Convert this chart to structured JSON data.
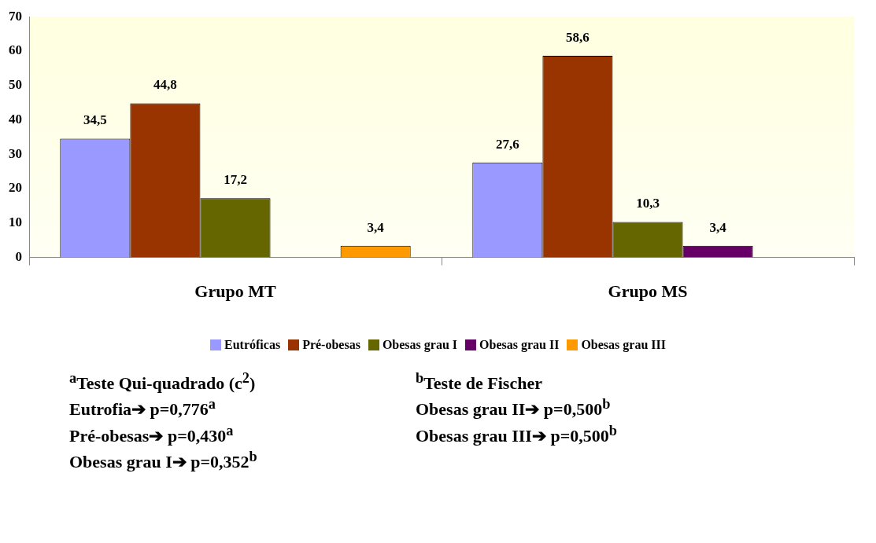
{
  "chart_data": {
    "type": "bar",
    "categories": [
      "Grupo MT",
      "Grupo MS"
    ],
    "series": [
      {
        "name": "Eutróficas",
        "color": "#9999ff",
        "values": [
          34.5,
          27.6
        ],
        "value_labels": [
          "34,5",
          "27,6"
        ]
      },
      {
        "name": "Pré-obesas",
        "color": "#993300",
        "values": [
          44.8,
          58.6
        ],
        "value_labels": [
          "44,8",
          "58,6"
        ]
      },
      {
        "name": "Obesas grau I",
        "color": "#666600",
        "values": [
          17.2,
          10.3
        ],
        "value_labels": [
          "17,2",
          "10,3"
        ]
      },
      {
        "name": "Obesas grau II",
        "color": "#660066",
        "values": [
          null,
          3.4
        ],
        "value_labels": [
          null,
          "3,4"
        ]
      },
      {
        "name": "Obesas grau III",
        "color": "#ff9900",
        "values": [
          3.4,
          null
        ],
        "value_labels": [
          "3,4",
          null
        ]
      }
    ],
    "ylim": [
      0,
      70
    ],
    "yticks": [
      0,
      10,
      20,
      30,
      40,
      50,
      60,
      70
    ],
    "legend": "bottom",
    "annotations": [
      "$^{a}$Teste Qui-quadrado (c$^{2}$)",
      "Eutrofia➔ p=0,776$^{a}$",
      "Pré-obesas➔ p=0,430$^{a}$",
      "Obesas grau I➔ p=0,352$^{b}$",
      "$^{b}$Teste de Fischer",
      "Obesas grau II➔ p=0,500$^{b}$",
      "Obesas grau III➔ p=0,500$^{b}$"
    ]
  }
}
